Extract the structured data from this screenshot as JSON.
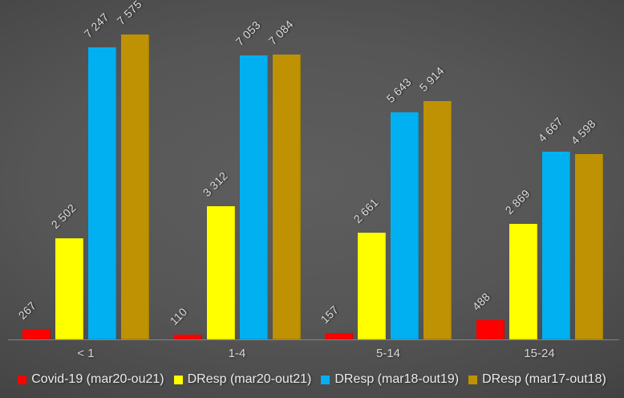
{
  "chart_data": {
    "type": "bar",
    "title": "",
    "categories": [
      "< 1",
      "1-4",
      "5-14",
      "15-24"
    ],
    "series": [
      {
        "name": "Covid-19 (mar20-ou21)",
        "color": "#fe0000",
        "values": [
          267,
          110,
          157,
          488
        ],
        "labels": [
          "267",
          "110",
          "157",
          "488"
        ]
      },
      {
        "name": "DResp (mar20-out21)",
        "color": "#ffff00",
        "values": [
          2502,
          3312,
          2661,
          2869
        ],
        "labels": [
          "2 502",
          "3 312",
          "2 661",
          "2 869"
        ]
      },
      {
        "name": "DResp (mar18-out19)",
        "color": "#00b0f0",
        "values": [
          7247,
          7053,
          5643,
          4667
        ],
        "labels": [
          "7 247",
          "7 053",
          "5 643",
          "4 667"
        ]
      },
      {
        "name": "DResp (mar17-out18)",
        "color": "#bf9204",
        "values": [
          7575,
          7084,
          5914,
          4598
        ],
        "labels": [
          "7 575",
          "7 084",
          "5 914",
          "4 598"
        ]
      }
    ],
    "ylim": [
      0,
      7575
    ],
    "grid": false,
    "value_labels_rotated_deg": -45,
    "legend_position": "bottom",
    "axis_line_color": "#9b9b9b",
    "label_color": "#dcdcdc",
    "background_style": "dark radial gradient"
  }
}
